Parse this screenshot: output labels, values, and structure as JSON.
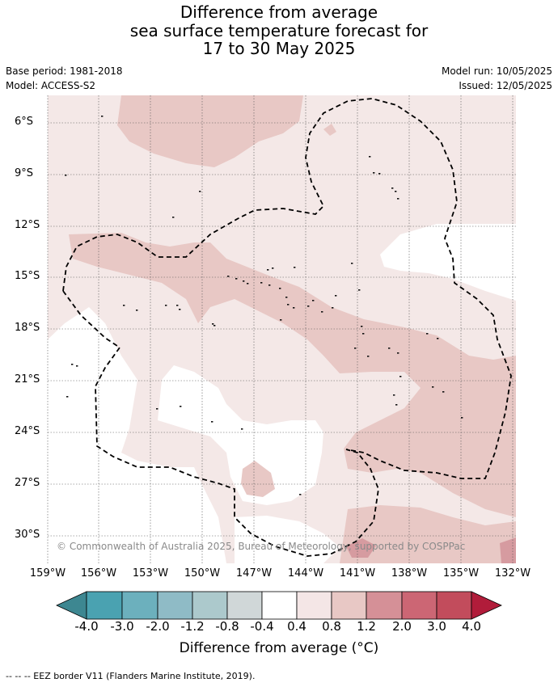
{
  "title": {
    "line1": "Difference from average",
    "line2": "sea surface temperature forecast for",
    "line3": "17 to 30 May 2025"
  },
  "meta": {
    "base_period": "Base period: 1981-2018",
    "model": "Model: ACCESS-S2",
    "model_run": "Model run: 10/05/2025",
    "issued": "Issued: 12/05/2025"
  },
  "map": {
    "lat_labels": [
      "6°S",
      "9°S",
      "12°S",
      "15°S",
      "18°S",
      "21°S",
      "24°S",
      "27°S",
      "30°S"
    ],
    "lon_labels": [
      "159°W",
      "156°W",
      "153°W",
      "150°W",
      "147°W",
      "144°W",
      "141°W",
      "138°W",
      "135°W",
      "132°W"
    ],
    "copyright": "© Commonwealth of Australia 2025, Bureau of Meteorology, supported by COSPPac",
    "eez_line_style": "dashed",
    "colors": {
      "ocean_light_pos": "#f4e8e7",
      "ocean_mid_pos": "#e8c8c5",
      "ocean_strong_pos": "#d69ba0",
      "ocean_neutral": "#ffffff"
    }
  },
  "colorbar": {
    "title": "Difference from average (°C)",
    "tick_labels": [
      "-4.0",
      "-3.0",
      "-2.0",
      "-1.2",
      "-0.8",
      "-0.4",
      "0.4",
      "0.8",
      "1.2",
      "2.0",
      "3.0",
      "4.0"
    ],
    "colors": [
      "#3d8791",
      "#4aa2b1",
      "#6cb0bd",
      "#8fbbc6",
      "#acc9cc",
      "#d0d7d8",
      "#ffffff",
      "#f4e6e6",
      "#e8c8c5",
      "#d59097",
      "#cc6674",
      "#c24c5c",
      "#b11c3a"
    ]
  },
  "footer": "--  --  -- EEZ border V11 (Flanders Marine Institute, 2019)."
}
